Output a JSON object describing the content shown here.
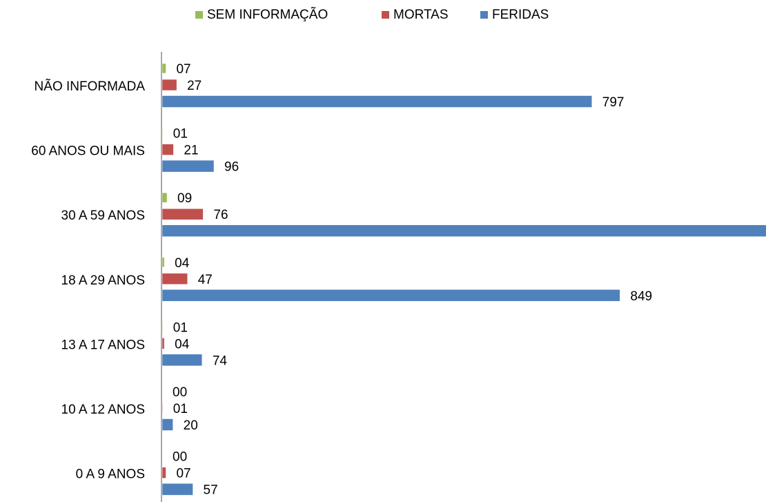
{
  "chart_data": {
    "type": "hbar",
    "categories": [
      "NÃO INFORMADA",
      "60 ANOS OU MAIS",
      "30 A 59 ANOS",
      "18 A 29 ANOS",
      "13 A 17 ANOS",
      "10 A 12 ANOS",
      "0 A 9 ANOS"
    ],
    "series": [
      {
        "name": "SEM INFORMAÇÃO",
        "color": "#9bbb59",
        "values": [
          7,
          1,
          9,
          4,
          1,
          0,
          0
        ],
        "value_labels": [
          "07",
          "01",
          "09",
          "04",
          "01",
          "00",
          "00"
        ]
      },
      {
        "name": "MORTAS",
        "color": "#c0504d",
        "values": [
          27,
          21,
          76,
          47,
          4,
          1,
          7
        ],
        "value_labels": [
          "27",
          "21",
          "76",
          "47",
          "04",
          "01",
          "07"
        ]
      },
      {
        "name": "FERIDAS",
        "color": "#4f81bd",
        "values": [
          797,
          96,
          1139,
          849,
          74,
          20,
          57
        ]
      }
    ],
    "legend": "top"
  }
}
